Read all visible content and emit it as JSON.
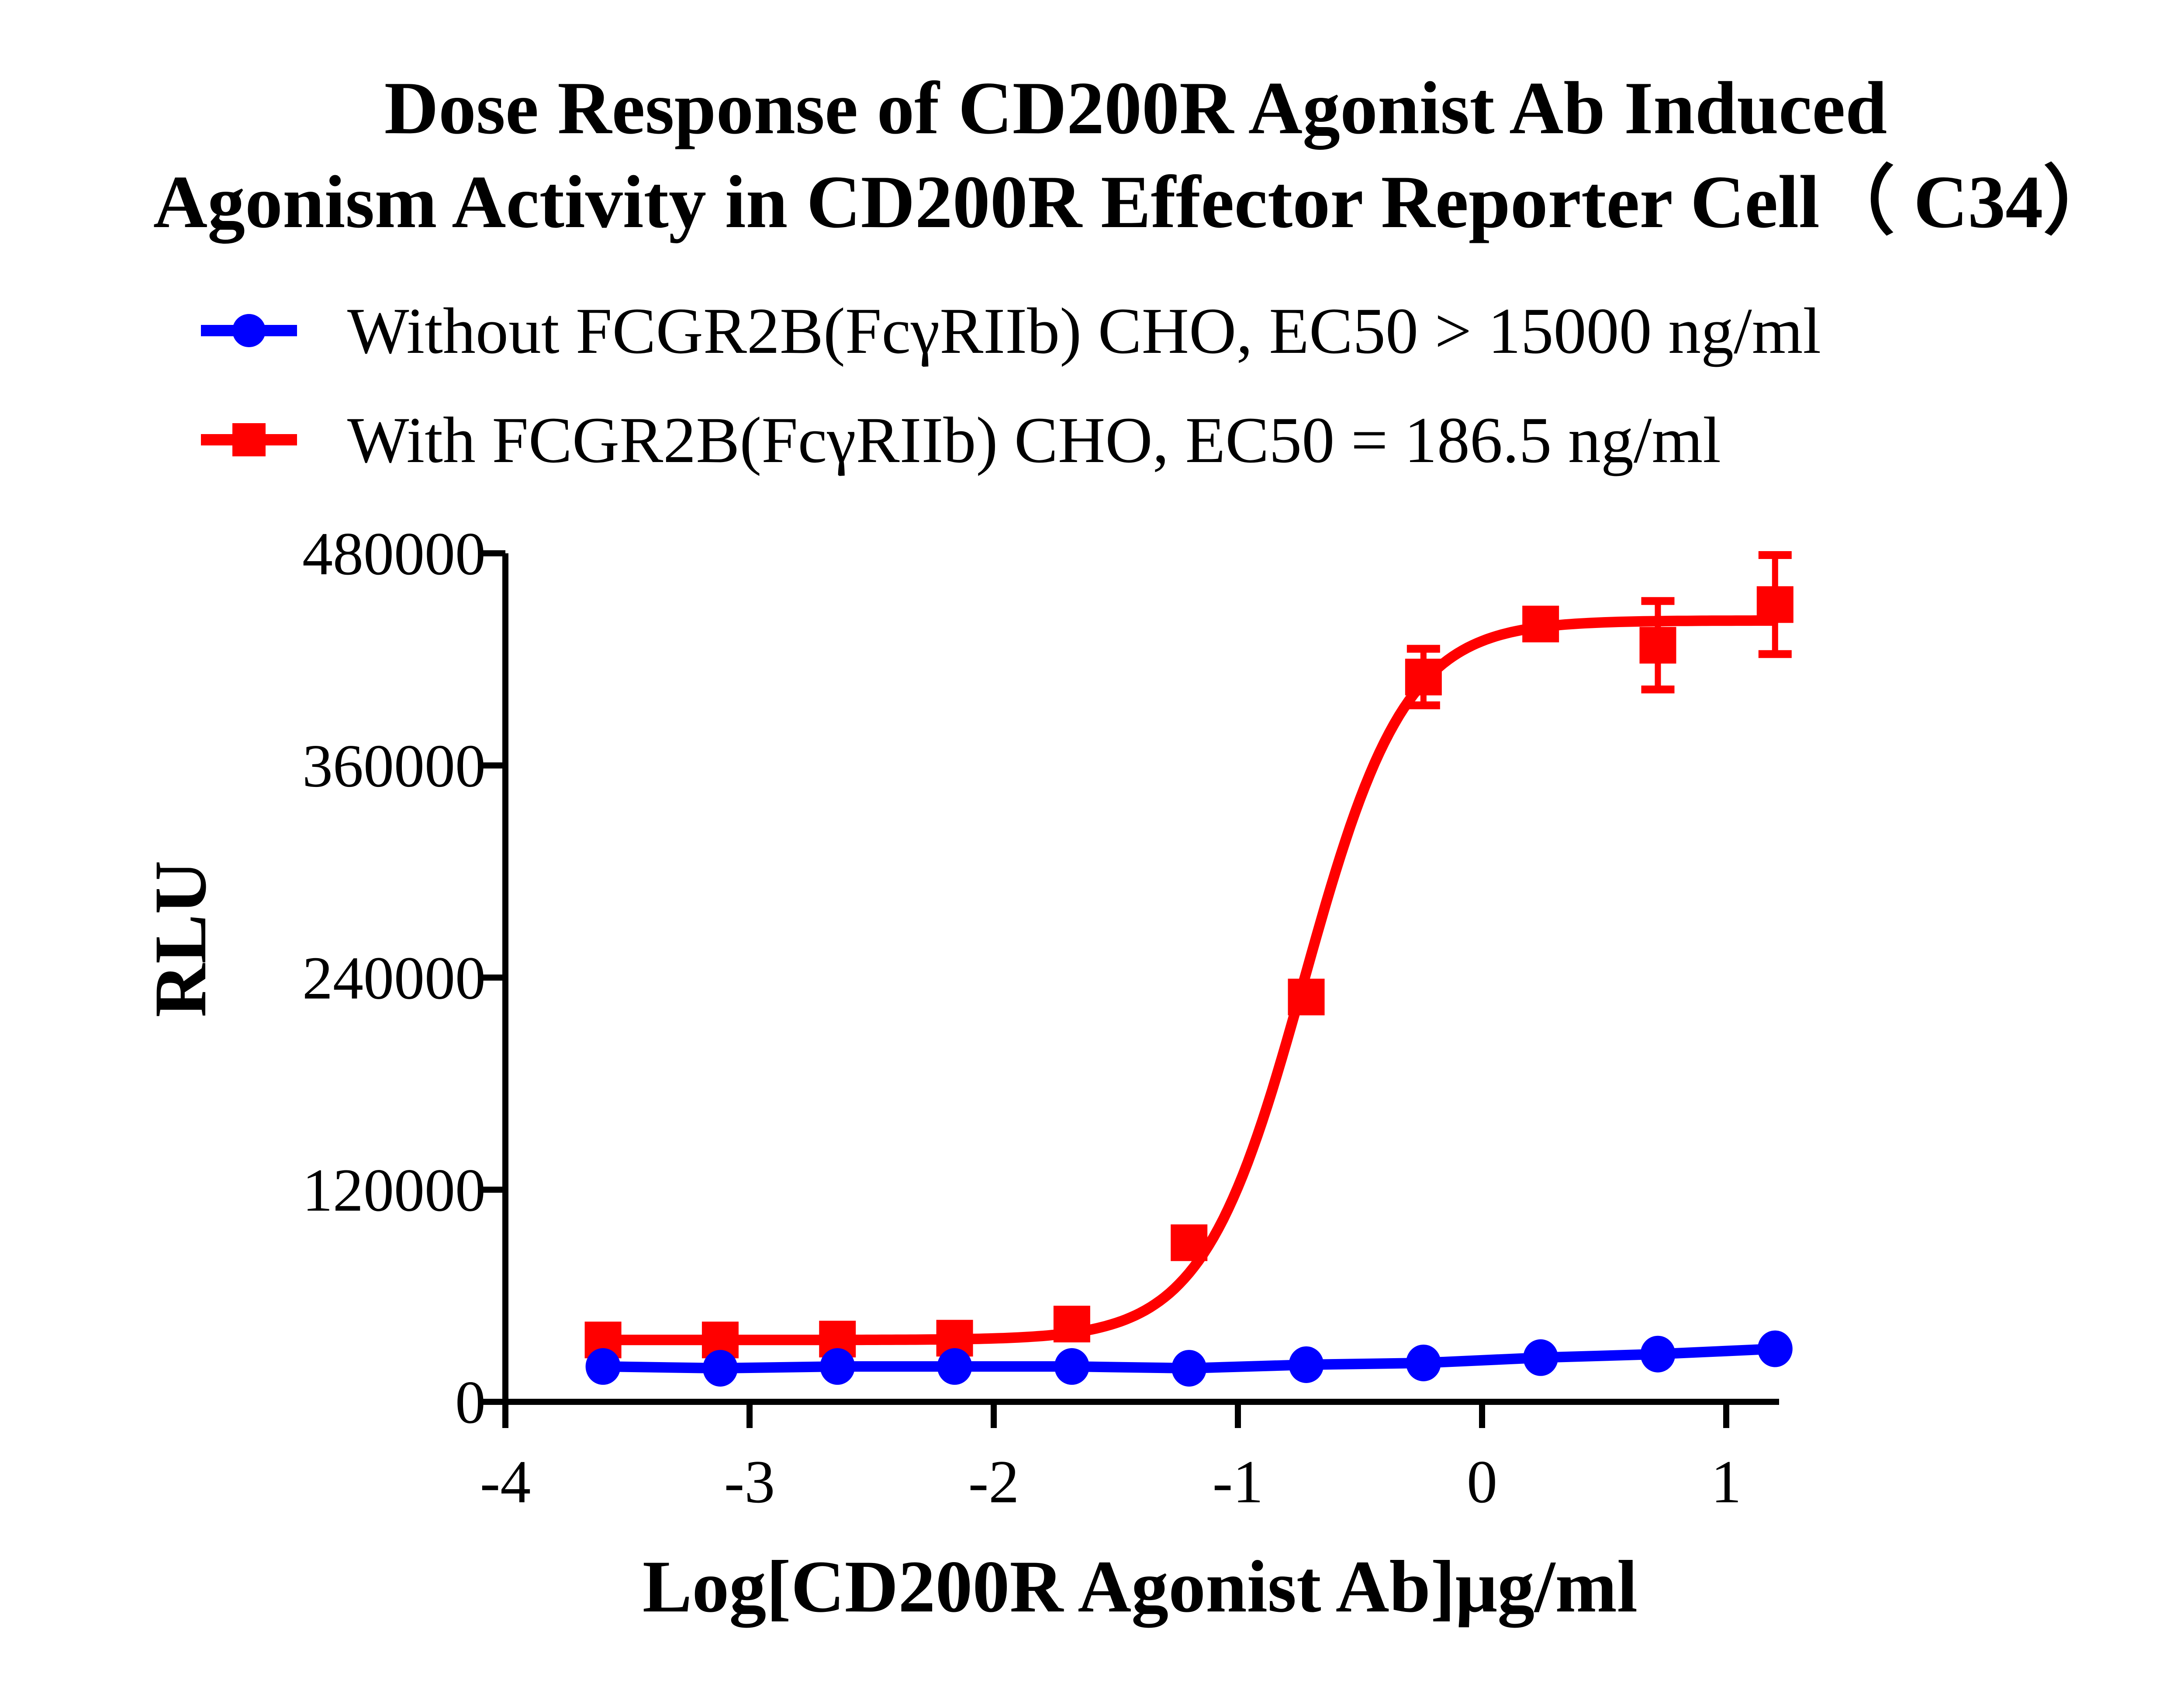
{
  "chart_data": {
    "type": "line",
    "title": [
      "Dose Response of CD200R Agonist Ab Induced",
      "Agonism Activity in CD200R Effector Reporter Cell（ C34）"
    ],
    "xlabel": "Log[CD200R Agonist Ab]μg/ml",
    "ylabel": "RLU",
    "xlim": [
      -4,
      1.2
    ],
    "ylim": [
      0,
      480000
    ],
    "xticks": [
      -4,
      -3,
      -2,
      -1,
      0,
      1
    ],
    "yticks": [
      0,
      120000,
      240000,
      360000,
      480000
    ],
    "grid": false,
    "legend_position": "top",
    "series": [
      {
        "name": "Without FCGR2B(FcγRIIb) CHO, EC50 > 15000 ng/ml",
        "color": "#0000ff",
        "marker": "circle",
        "x": [
          -3.6,
          -3.12,
          -2.64,
          -2.16,
          -1.68,
          -1.2,
          -0.72,
          -0.24,
          0.24,
          0.72,
          1.2
        ],
        "y": [
          20000,
          19000,
          20000,
          20000,
          20000,
          19000,
          21000,
          22000,
          25000,
          27000,
          30000
        ]
      },
      {
        "name": "With FCGR2B(FcγRIIb) CHO, EC50 = 186.5 ng/ml",
        "color": "#ff0000",
        "marker": "square",
        "x": [
          -3.6,
          -3.12,
          -2.64,
          -2.16,
          -1.68,
          -1.2,
          -0.72,
          -0.24,
          0.24,
          0.72,
          1.2
        ],
        "y": [
          35000,
          35000,
          35500,
          36000,
          44000,
          90000,
          229000,
          410000,
          440000,
          428000,
          451000
        ],
        "error": [
          0,
          0,
          0,
          0,
          0,
          0,
          0,
          16000,
          8000,
          25000,
          28000
        ],
        "fit": {
          "bottom": 35000,
          "top": 442000,
          "logEC50": -0.729,
          "hill": 2.1
        }
      }
    ]
  }
}
